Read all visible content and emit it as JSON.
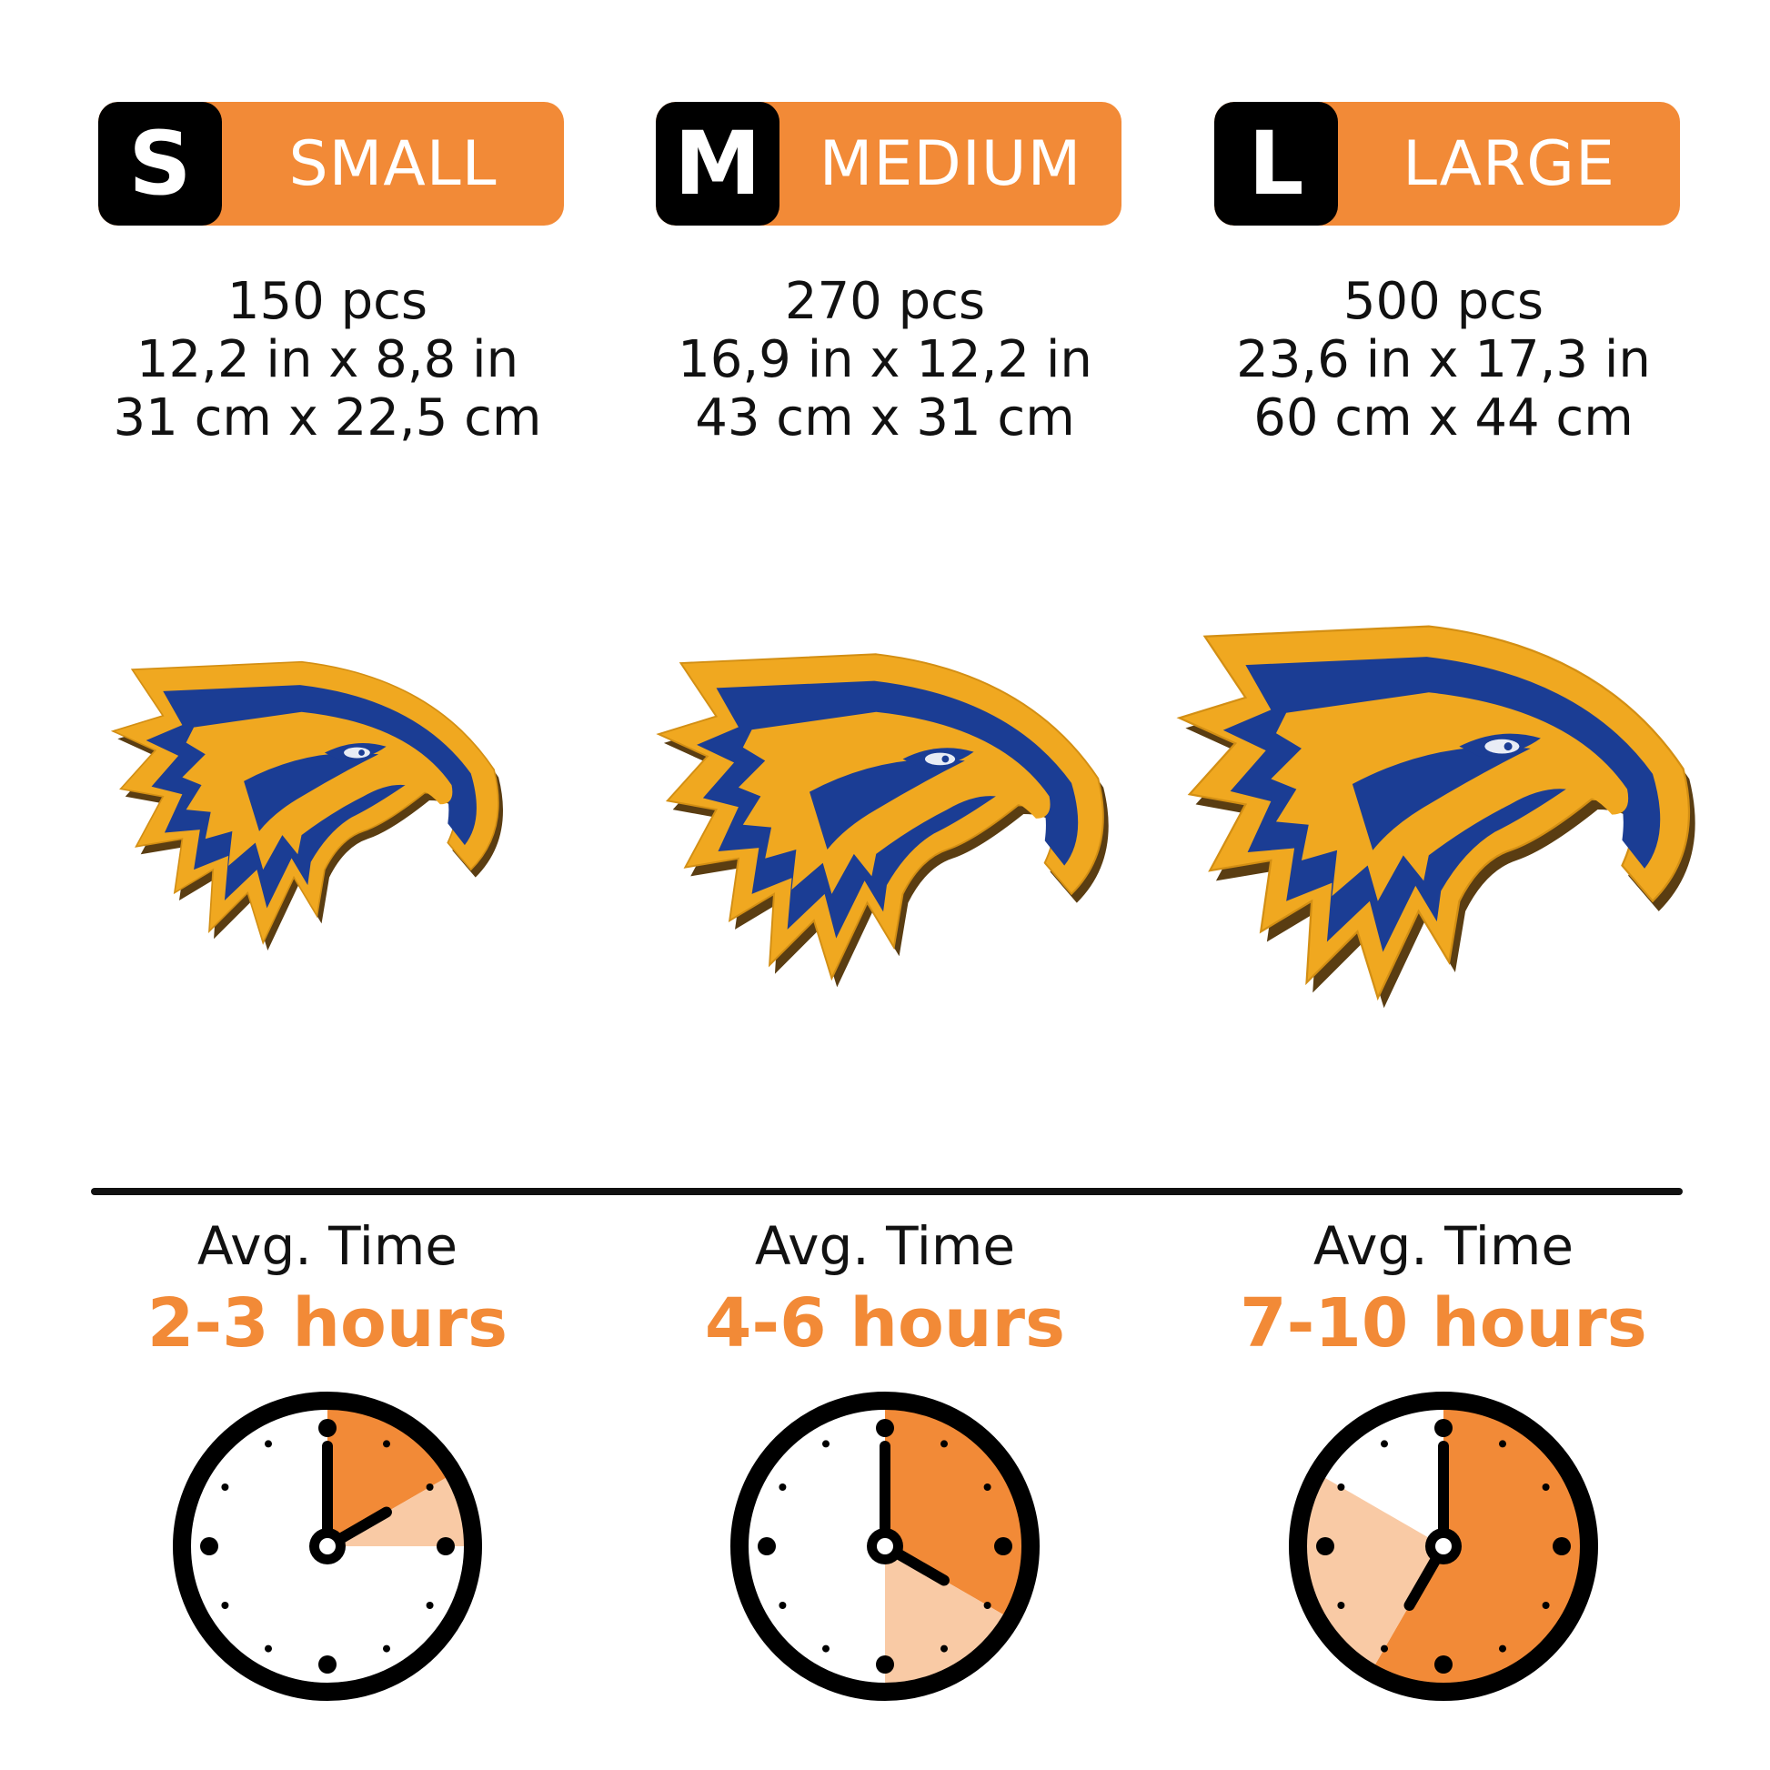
{
  "colors": {
    "accent": "#f28a37",
    "accent_light": "#f9caa5",
    "eagle_gold": "#f0a820",
    "eagle_blue": "#1b3d94",
    "text": "#111111"
  },
  "sizes": [
    {
      "letter": "S",
      "label": "SMALL",
      "pieces": "150 pcs",
      "size_in": "12,2 in x 8,8 in",
      "size_cm": "31 cm x 22,5 cm",
      "avg_label": "Avg. Time",
      "hours": "2-3 hours",
      "clock_hand_hour": 2,
      "clock_shade_dark_hours": 2,
      "clock_shade_light_hours": 1,
      "eagle_scale": 0.78
    },
    {
      "letter": "M",
      "label": "MEDIUM",
      "pieces": "270 pcs",
      "size_in": "16,9 in x 12,2 in",
      "size_cm": "43 cm x 31 cm",
      "avg_label": "Avg. Time",
      "hours": "4-6 hours",
      "clock_hand_hour": 4,
      "clock_shade_dark_hours": 4,
      "clock_shade_light_hours": 2,
      "eagle_scale": 0.9
    },
    {
      "letter": "L",
      "label": "LARGE",
      "pieces": "500 pcs",
      "size_in": "23,6 in x 17,3 in",
      "size_cm": "60 cm x 44 cm",
      "avg_label": "Avg. Time",
      "hours": "7-10 hours",
      "clock_hand_hour": 7,
      "clock_shade_dark_hours": 7,
      "clock_shade_light_hours": 3,
      "eagle_scale": 1.0
    }
  ]
}
